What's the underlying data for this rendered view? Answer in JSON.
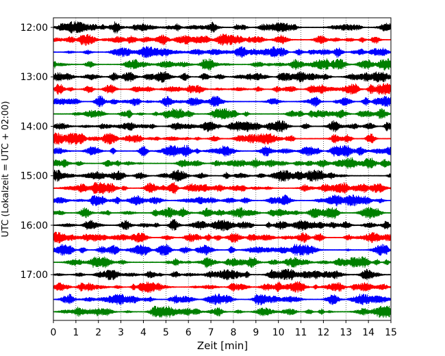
{
  "chart_data": {
    "type": "line",
    "chart_kind": "helicorder",
    "xlabel": "Zeit  [min]",
    "ylabel": "UTC (Lokalzeit = UTC + 02:00)",
    "xlim": [
      0,
      15
    ],
    "x_ticks": [
      "0",
      "1",
      "2",
      "3",
      "4",
      "5",
      "6",
      "7",
      "8",
      "9",
      "10",
      "11",
      "12",
      "13",
      "14",
      "15"
    ],
    "hour_ticks": [
      "12:00",
      "13:00",
      "14:00",
      "15:00",
      "16:00",
      "17:00"
    ],
    "trace_interval_min": 15,
    "traces": [
      {
        "start": "12:00",
        "color": "#000000"
      },
      {
        "start": "12:15",
        "color": "#ff0000"
      },
      {
        "start": "12:30",
        "color": "#0000ff"
      },
      {
        "start": "12:45",
        "color": "#008000"
      },
      {
        "start": "13:00",
        "color": "#000000"
      },
      {
        "start": "13:15",
        "color": "#ff0000"
      },
      {
        "start": "13:30",
        "color": "#0000ff"
      },
      {
        "start": "13:45",
        "color": "#008000"
      },
      {
        "start": "14:00",
        "color": "#000000"
      },
      {
        "start": "14:15",
        "color": "#ff0000"
      },
      {
        "start": "14:30",
        "color": "#0000ff"
      },
      {
        "start": "14:45",
        "color": "#008000"
      },
      {
        "start": "15:00",
        "color": "#000000"
      },
      {
        "start": "15:15",
        "color": "#ff0000"
      },
      {
        "start": "15:30",
        "color": "#0000ff"
      },
      {
        "start": "15:45",
        "color": "#008000"
      },
      {
        "start": "16:00",
        "color": "#000000"
      },
      {
        "start": "16:15",
        "color": "#ff0000"
      },
      {
        "start": "16:30",
        "color": "#0000ff"
      },
      {
        "start": "16:45",
        "color": "#008000"
      },
      {
        "start": "17:00",
        "color": "#000000"
      },
      {
        "start": "17:15",
        "color": "#ff0000"
      },
      {
        "start": "17:30",
        "color": "#0000ff"
      },
      {
        "start": "17:45",
        "color": "#008000"
      }
    ],
    "grid": "vertical dotted lines at each minute",
    "colors": [
      "#000000",
      "#ff0000",
      "#0000ff",
      "#008000"
    ]
  }
}
